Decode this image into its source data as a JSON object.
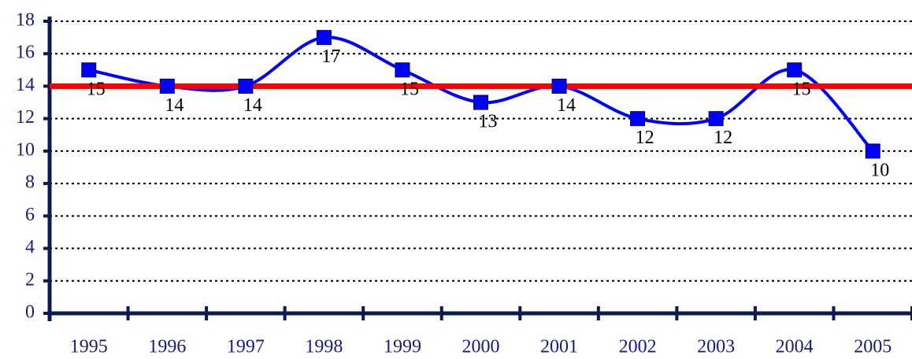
{
  "chart_data": {
    "type": "line",
    "categories": [
      "1995",
      "1996",
      "1997",
      "1998",
      "1999",
      "2000",
      "2001",
      "2002",
      "2003",
      "2004",
      "2005"
    ],
    "series": [
      {
        "color": "#0000ff",
        "values": [
          15,
          14,
          14,
          17,
          15,
          13,
          14,
          12,
          12,
          15,
          10
        ]
      }
    ],
    "reference_line": {
      "value": 14,
      "color": "#ff0000"
    },
    "ylim": [
      0,
      18
    ],
    "yticks": [
      0,
      2,
      4,
      6,
      8,
      10,
      12,
      14,
      16,
      18
    ],
    "grid": true,
    "smooth": true
  }
}
